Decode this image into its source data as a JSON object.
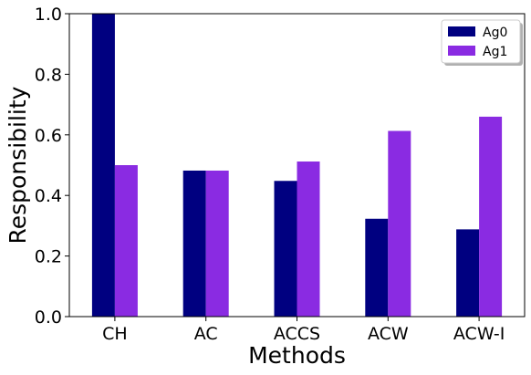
{
  "chart_data": {
    "type": "bar",
    "categories": [
      "CH",
      "AC",
      "ACCS",
      "ACW",
      "ACW-I"
    ],
    "series": [
      {
        "name": "Ag0",
        "color": "#000080",
        "values": [
          1.0,
          0.482,
          0.448,
          0.323,
          0.288
        ]
      },
      {
        "name": "Ag1",
        "color": "#8a2be2",
        "values": [
          0.5,
          0.482,
          0.512,
          0.613,
          0.66
        ]
      }
    ],
    "xlabel": "Methods",
    "ylabel": "Responsibility",
    "ylim": [
      0.0,
      1.0
    ],
    "yticks": [
      "0.0",
      "0.2",
      "0.4",
      "0.6",
      "0.8",
      "1.0"
    ],
    "grid": false,
    "legend_position": "top-right"
  }
}
